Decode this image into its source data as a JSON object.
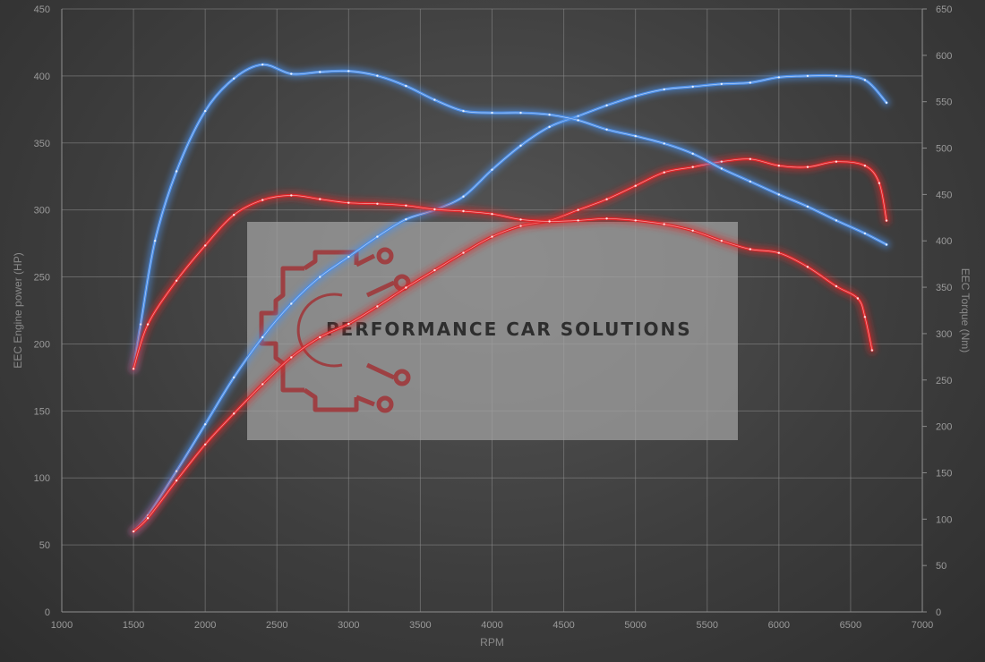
{
  "chart_data": {
    "type": "line",
    "xlabel": "RPM",
    "ylabel_left": "EEC Engine power (HP)",
    "ylabel_right": "EEC Torque (Nm)",
    "xlim": [
      1000,
      7000
    ],
    "xticks": [
      1000,
      1500,
      2000,
      2500,
      3000,
      3500,
      4000,
      4500,
      5000,
      5500,
      6000,
      6500,
      7000
    ],
    "ylim_left": [
      0,
      450
    ],
    "yticks_left": [
      0,
      50,
      100,
      150,
      200,
      250,
      300,
      350,
      400,
      450
    ],
    "ylim_right": [
      0,
      650
    ],
    "yticks_right": [
      0,
      50,
      100,
      150,
      200,
      250,
      300,
      350,
      400,
      450,
      500,
      550,
      600,
      650
    ],
    "grid": true,
    "series": [
      {
        "axis": "left",
        "color": "#4d8fe8",
        "x": [
          1500,
          1600,
          1800,
          2000,
          2200,
          2400,
          2600,
          2800,
          3000,
          3200,
          3400,
          3600,
          3800,
          4000,
          4200,
          4400,
          4600,
          4800,
          5000,
          5200,
          5400,
          5600,
          5800,
          6000,
          6200,
          6400,
          6600,
          6750
        ],
        "y": [
          60,
          72,
          105,
          140,
          175,
          205,
          230,
          250,
          265,
          280,
          293,
          300,
          310,
          330,
          348,
          362,
          370,
          378,
          385,
          390,
          392,
          394,
          395,
          399,
          400,
          400,
          397,
          380
        ]
      },
      {
        "axis": "left",
        "color": "#e0272b",
        "x": [
          1500,
          1600,
          1800,
          2000,
          2200,
          2400,
          2600,
          2800,
          3000,
          3200,
          3400,
          3600,
          3800,
          4000,
          4200,
          4400,
          4600,
          4800,
          5000,
          5200,
          5400,
          5600,
          5800,
          6000,
          6200,
          6400,
          6600,
          6700,
          6750
        ],
        "y": [
          60,
          70,
          98,
          125,
          148,
          170,
          190,
          205,
          215,
          228,
          242,
          255,
          268,
          280,
          288,
          292,
          300,
          308,
          318,
          328,
          332,
          336,
          338,
          333,
          332,
          336,
          333,
          320,
          292
        ]
      },
      {
        "axis": "right",
        "color": "#4d8fe8",
        "x": [
          1500,
          1550,
          1650,
          1800,
          2000,
          2200,
          2400,
          2600,
          2800,
          3000,
          3200,
          3400,
          3600,
          3800,
          4000,
          4200,
          4400,
          4600,
          4800,
          5000,
          5200,
          5400,
          5600,
          5800,
          6000,
          6200,
          6400,
          6600,
          6750
        ],
        "y": [
          262,
          310,
          400,
          475,
          540,
          575,
          590,
          580,
          582,
          583,
          578,
          567,
          552,
          540,
          538,
          538,
          536,
          530,
          520,
          513,
          505,
          494,
          478,
          464,
          450,
          437,
          422,
          408,
          396
        ]
      },
      {
        "axis": "right",
        "color": "#e0272b",
        "x": [
          1500,
          1600,
          1800,
          2000,
          2200,
          2400,
          2600,
          2800,
          3000,
          3200,
          3400,
          3600,
          3800,
          4000,
          4200,
          4400,
          4600,
          4800,
          5000,
          5200,
          5400,
          5600,
          5800,
          6000,
          6200,
          6400,
          6550,
          6600,
          6650
        ],
        "y": [
          262,
          310,
          357,
          395,
          428,
          444,
          449,
          445,
          441,
          440,
          438,
          434,
          432,
          429,
          423,
          421,
          422,
          424,
          422,
          418,
          411,
          400,
          391,
          387,
          372,
          351,
          338,
          318,
          282
        ]
      }
    ]
  },
  "watermark": {
    "text": "PERFORMANCE CAR SOLUTIONS",
    "logo_icon": "gear-circuit-logo-icon"
  }
}
